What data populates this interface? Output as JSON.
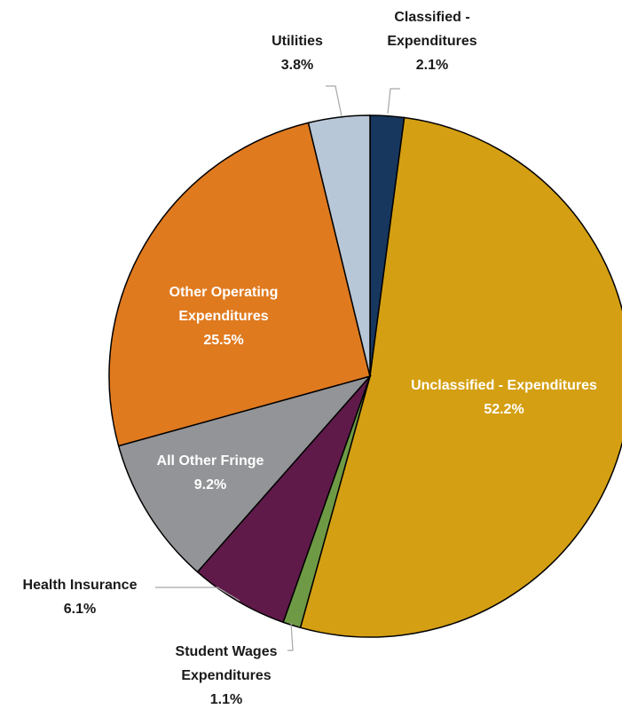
{
  "chart_data": {
    "type": "pie",
    "categories": [
      "Classified - Expenditures",
      "Unclassified - Expenditures",
      "Student Wages Expenditures",
      "Health Insurance",
      "All Other Fringe",
      "Other Operating Expenditures",
      "Utilities"
    ],
    "values": [
      2.1,
      52.2,
      1.1,
      6.1,
      9.2,
      25.5,
      3.8
    ],
    "value_labels": [
      "2.1%",
      "52.2%",
      "1.1%",
      "6.1%",
      "9.2%",
      "25.5%",
      "3.8%"
    ],
    "colors": [
      "#17375e",
      "#d49f12",
      "#6f9a45",
      "#5f1a4a",
      "#939497",
      "#e07a1f",
      "#b8c7d7"
    ]
  }
}
